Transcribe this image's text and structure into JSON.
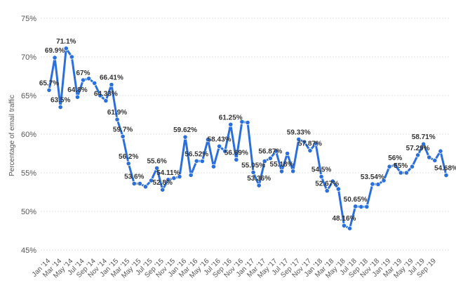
{
  "chart_data": {
    "type": "line",
    "ylabel": "Percentage of email traffic",
    "ylim": [
      45,
      75
    ],
    "yticks": [
      "45%",
      "50%",
      "55%",
      "60%",
      "65%",
      "70%",
      "75%"
    ],
    "grid": true,
    "line_color": "#2a6fdb",
    "x_tick_labels": [
      "Jan '14",
      "Mar '14",
      "May '14",
      "Jul '14",
      "Sep '14",
      "Nov '14",
      "Jan '15",
      "Mar '15",
      "May '15",
      "Jul '15",
      "Sep '15",
      "Nov '15",
      "Jan '16",
      "Mar '16",
      "May '16",
      "Jul '16",
      "Sep '16",
      "Nov '16",
      "Jan '17",
      "Mar '17",
      "May '17",
      "Jul '17",
      "Sep '17",
      "Nov '17",
      "Jan '18",
      "Mar '18",
      "May '18",
      "Jul '18",
      "Sep '18",
      "Nov '18",
      "Jan '19",
      "Mar '19",
      "May '19",
      "Jul '19",
      "Sep '19"
    ],
    "series": [
      {
        "values": [
          65.7,
          69.9,
          63.5,
          71.1,
          70.0,
          64.8,
          67.0,
          67.2,
          66.6,
          65.0,
          64.33,
          66.41,
          61.9,
          59.7,
          56.2,
          53.6,
          53.6,
          53.2,
          54.0,
          55.6,
          52.8,
          54.11,
          54.3,
          54.5,
          59.62,
          54.7,
          56.52,
          56.5,
          59.3,
          55.8,
          58.43,
          57.8,
          61.25,
          56.69,
          61.6,
          61.5,
          55.05,
          53.36,
          56.5,
          56.87,
          57.8,
          55.18,
          57.5,
          55.2,
          59.33,
          59.0,
          57.87,
          58.8,
          54.5,
          52.67,
          53.9,
          52.9,
          48.16,
          47.8,
          50.65,
          50.6,
          50.6,
          53.54,
          53.5,
          54.0,
          55.8,
          56.0,
          55.0,
          55.0,
          55.8,
          57.29,
          58.71,
          57.0,
          56.6,
          57.8,
          54.68
        ]
      }
    ],
    "data_labels": [
      {
        "i": 0,
        "text": "65.7%"
      },
      {
        "i": 1,
        "text": "69.9%"
      },
      {
        "i": 2,
        "text": "63.5%"
      },
      {
        "i": 3,
        "text": "71.1%"
      },
      {
        "i": 5,
        "text": "64.8%"
      },
      {
        "i": 6,
        "text": "67%"
      },
      {
        "i": 10,
        "text": "64.33%"
      },
      {
        "i": 11,
        "text": "66.41%"
      },
      {
        "i": 12,
        "text": "61.9%"
      },
      {
        "i": 13,
        "text": "59.7%"
      },
      {
        "i": 14,
        "text": "56.2%"
      },
      {
        "i": 15,
        "text": "53.6%"
      },
      {
        "i": 19,
        "text": "55.6%"
      },
      {
        "i": 20,
        "text": "52.8%"
      },
      {
        "i": 21,
        "text": "54.11%"
      },
      {
        "i": 24,
        "text": "59.62%"
      },
      {
        "i": 26,
        "text": "56.52%"
      },
      {
        "i": 30,
        "text": "58.43%"
      },
      {
        "i": 32,
        "text": "61.25%"
      },
      {
        "i": 33,
        "text": "56.69%"
      },
      {
        "i": 36,
        "text": "55.05%"
      },
      {
        "i": 37,
        "text": "53.36%"
      },
      {
        "i": 39,
        "text": "56.87%"
      },
      {
        "i": 41,
        "text": "55.18%"
      },
      {
        "i": 44,
        "text": "59.33%"
      },
      {
        "i": 46,
        "text": "57.87%"
      },
      {
        "i": 48,
        "text": "54.5%"
      },
      {
        "i": 49,
        "text": "52.67%"
      },
      {
        "i": 52,
        "text": "48.16%"
      },
      {
        "i": 54,
        "text": "50.65%"
      },
      {
        "i": 57,
        "text": "53.54%"
      },
      {
        "i": 61,
        "text": "56%"
      },
      {
        "i": 62,
        "text": "55%"
      },
      {
        "i": 65,
        "text": "57.29%"
      },
      {
        "i": 66,
        "text": "58.71%"
      },
      {
        "i": 70,
        "text": "54.68%"
      }
    ]
  }
}
